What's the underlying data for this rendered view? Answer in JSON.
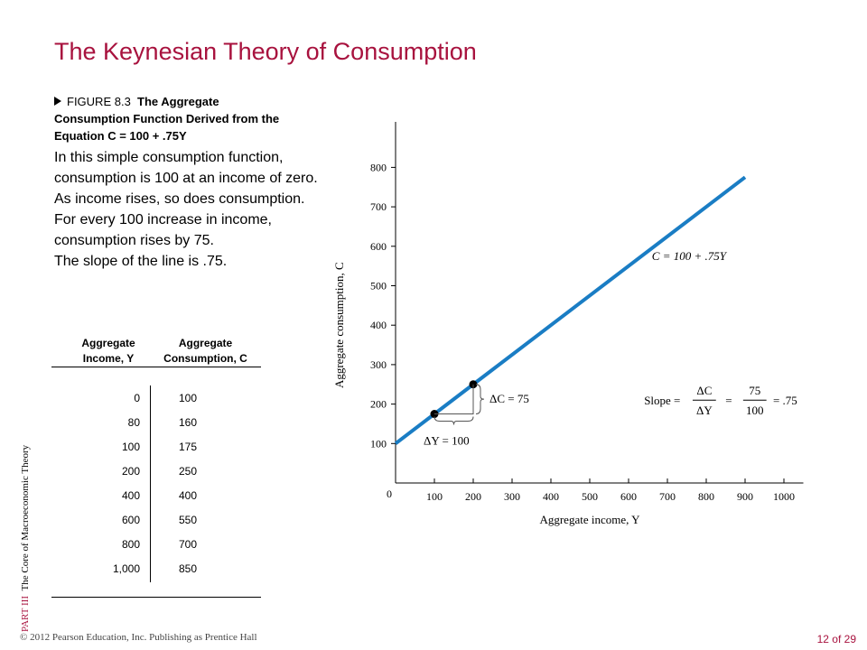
{
  "title": "The Keynesian Theory of Consumption",
  "caption": {
    "figure_label": "FIGURE 8.3",
    "line1": "The Aggregate",
    "line2": "Consumption Function Derived from the",
    "line3_prefix": "Equation ",
    "line3_eq": "C = 100 + .75Y"
  },
  "bullets": [
    "In this simple consumption function, consumption is 100 at an income of zero.",
    "As income rises, so does consumption.",
    "For every 100 increase in income, consumption rises by 75.",
    "The slope of the line is .75."
  ],
  "table": {
    "col1_header_line1": "Aggregate",
    "col1_header_line2": "Income, Y",
    "col2_header_line1": "Aggregate",
    "col2_header_line2": "Consumption, C",
    "income": [
      "0",
      "80",
      "100",
      "200",
      "400",
      "600",
      "800",
      "1,000"
    ],
    "consumption": [
      "100",
      "160",
      "175",
      "250",
      "400",
      "550",
      "700",
      "850"
    ]
  },
  "chart_data": {
    "type": "line",
    "xlabel": "Aggregate income, Y",
    "ylabel": "Aggregate consumption, C",
    "x_ticks": [
      "0",
      "100",
      "200",
      "300",
      "400",
      "500",
      "600",
      "700",
      "800",
      "900",
      "1000"
    ],
    "y_ticks": [
      "100",
      "200",
      "300",
      "400",
      "500",
      "600",
      "700",
      "800"
    ],
    "xlim": [
      0,
      1000
    ],
    "ylim": [
      0,
      800
    ],
    "line": {
      "intercept": 100,
      "slope": 0.75,
      "x_start": 0,
      "x_end": 900,
      "color": "#1a7dc4"
    },
    "points": [
      {
        "x": 100,
        "y": 175
      },
      {
        "x": 200,
        "y": 250
      }
    ],
    "equation_label": "C = 100 + .75Y",
    "delta_c_label": "ΔC = 75",
    "delta_y_label": "ΔY = 100",
    "slope": {
      "prefix": "Slope =",
      "num1": "ΔC",
      "den1": "ΔY",
      "equals": "=",
      "num2": "75",
      "den2": "100",
      "result": "= .75"
    }
  },
  "side_text": {
    "part": "PART III",
    "label": "The Core of Macroeconomic Theory"
  },
  "footer": {
    "copyright": "© 2012 Pearson Education, Inc. Publishing as Prentice Hall",
    "page": "12 of 29"
  },
  "colors": {
    "title": "#a8123e",
    "line": "#1a7dc4"
  }
}
